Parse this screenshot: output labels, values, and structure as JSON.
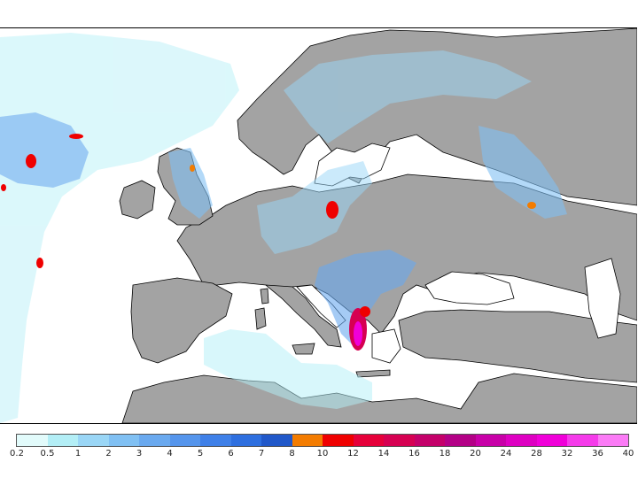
{
  "map": {
    "region": "Europe and Mediterranean",
    "variable": "precipitation",
    "land_color": "#a3a3a3",
    "sea_color": "#ffffff",
    "border_color": "#000000"
  },
  "legend": {
    "colors": [
      "#e2fbfb",
      "#b3eef6",
      "#9ad6f6",
      "#80c0f3",
      "#6aa9ef",
      "#5595ec",
      "#3f80e8",
      "#2e6fdf",
      "#2158c9",
      "#f37c00",
      "#ef0000",
      "#e6003a",
      "#d60052",
      "#c4006a",
      "#b30086",
      "#c800a8",
      "#de00c2",
      "#f000d9",
      "#f53bea",
      "#fb7bf6"
    ],
    "labels": [
      "0.2",
      "0.5",
      "1",
      "2",
      "3",
      "4",
      "5",
      "6",
      "7",
      "8",
      "10",
      "12",
      "14",
      "16",
      "18",
      "20",
      "24",
      "28",
      "32",
      "36",
      "40"
    ]
  }
}
